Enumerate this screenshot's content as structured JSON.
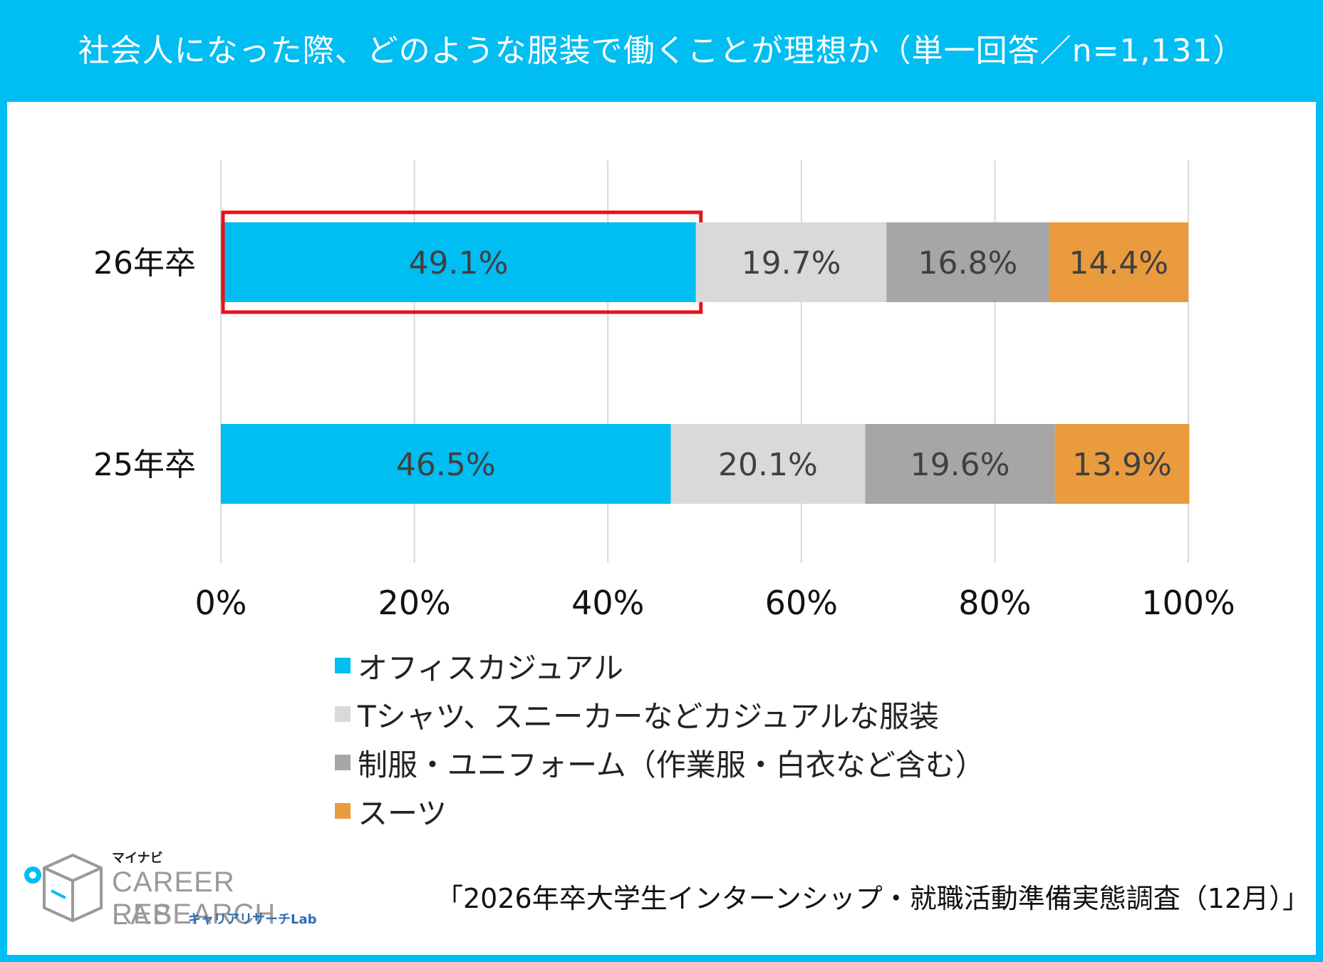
{
  "title": "社会人になった際、どのような服装で働くことが理想か（単一回答／n=1,131）",
  "chart_data": {
    "type": "bar",
    "orientation": "horizontal",
    "stacked": true,
    "categories": [
      "26年卒",
      "25年卒"
    ],
    "series": [
      {
        "name": "オフィスカジュアル",
        "color": "#00bdf2",
        "values": [
          49.1,
          46.5
        ],
        "labels": [
          "49.1%",
          "46.5%"
        ]
      },
      {
        "name": "Tシャツ、スニーカーなどカジュアルな服装",
        "color": "#d9d9d9",
        "values": [
          19.7,
          20.1
        ],
        "labels": [
          "19.7%",
          "20.1%"
        ]
      },
      {
        "name": "制服・ユニフォーム（作業服・白衣など含む）",
        "color": "#a6a6a6",
        "values": [
          16.8,
          19.6
        ],
        "labels": [
          "16.8%",
          "19.6%"
        ]
      },
      {
        "name": "スーツ",
        "color": "#e99b3e",
        "values": [
          14.4,
          13.9
        ],
        "labels": [
          "14.4%",
          "13.9%"
        ]
      }
    ],
    "xticks": [
      "0%",
      "20%",
      "40%",
      "60%",
      "80%",
      "100%"
    ],
    "xlim": [
      0,
      100
    ],
    "grid": true,
    "legend_position": "bottom",
    "highlight": {
      "category": "26年卒",
      "series": "オフィスカジュアル",
      "color": "#e8121a"
    }
  },
  "logo": {
    "small": "マイナビ",
    "main": "CAREER RESEARCH",
    "lab": "LAB",
    "sub": "キャリアリサーチLab"
  },
  "source": "「2026年卒大学生インターンシップ・就職活動準備実態調査（12月）」"
}
